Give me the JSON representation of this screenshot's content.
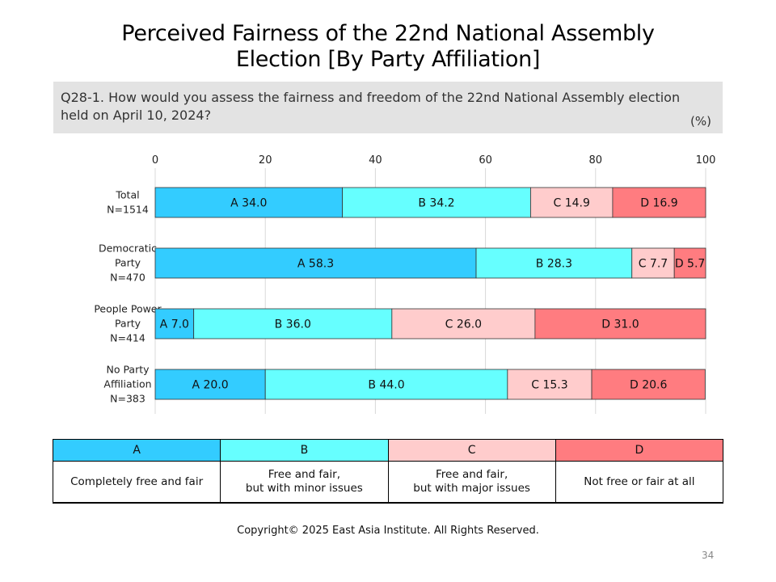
{
  "title_line1": "Perceived Fairness of the 22nd National Assembly",
  "title_line2": "Election [By Party Affiliation]",
  "question_line1": "Q28-1. How would you assess the fairness and freedom of the 22nd National Assembly election",
  "question_line2": "held on April 10, 2024?",
  "unit": "(%)",
  "chart_data": {
    "type": "bar",
    "orientation": "horizontal",
    "stacked": true,
    "xlim": [
      0,
      100
    ],
    "x_ticks": [
      0,
      20,
      40,
      60,
      80,
      100
    ],
    "grid": "vertical",
    "categories": [
      [
        "Total",
        "N=1514"
      ],
      [
        "Democratic",
        "Party",
        "N=470"
      ],
      [
        "People Power",
        "Party",
        "N=414"
      ],
      [
        "No Party",
        "Affiliation",
        "N=383"
      ]
    ],
    "series": [
      {
        "name": "A",
        "color": "#33ccff",
        "values": [
          34.0,
          58.3,
          7.0,
          20.0
        ]
      },
      {
        "name": "B",
        "color": "#66ffff",
        "values": [
          34.2,
          28.3,
          36.0,
          44.0
        ]
      },
      {
        "name": "C",
        "color": "#ffcccc",
        "values": [
          14.9,
          7.7,
          26.0,
          15.3
        ]
      },
      {
        "name": "D",
        "color": "#ff7c80",
        "values": [
          16.9,
          5.7,
          31.0,
          20.6
        ]
      }
    ]
  },
  "legend": {
    "headers": [
      {
        "letter": "A",
        "color": "#33ccff"
      },
      {
        "letter": "B",
        "color": "#66ffff"
      },
      {
        "letter": "C",
        "color": "#ffcccc"
      },
      {
        "letter": "D",
        "color": "#ff7c80"
      }
    ],
    "desc_a": "Completely free and fair",
    "desc_b_1": "Free and fair,",
    "desc_b_2": "but with minor issues",
    "desc_c_1": "Free and fair,",
    "desc_c_2": "but with major issues",
    "desc_d": "Not free or fair  at all"
  },
  "copyright": "Copyright© 2025 East Asia Institute. All Rights Reserved.",
  "page_number": "34"
}
